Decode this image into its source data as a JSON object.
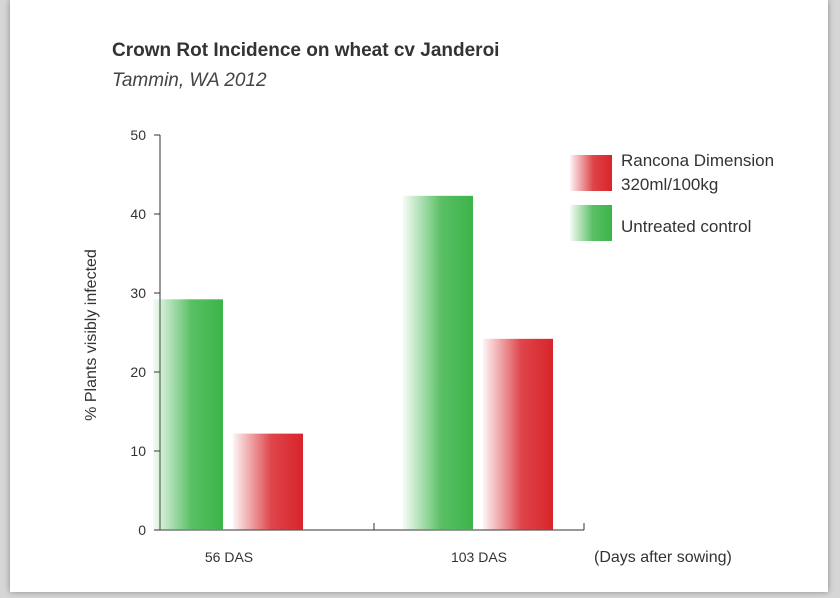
{
  "chart_data": {
    "type": "bar",
    "title": "Crown Rot Incidence on wheat cv Janderoi",
    "subtitle": "Tammin, WA 2012",
    "ylabel": "% Plants visibly infected",
    "xlabel": "(Days after sowing)",
    "categories": [
      "56 DAS",
      "103 DAS"
    ],
    "ylim": [
      0,
      50
    ],
    "yticks": [
      0,
      10,
      20,
      30,
      40,
      50
    ],
    "series": [
      {
        "name": "Untreated control",
        "values": [
          29.2,
          42.3
        ],
        "color": "#3cb449"
      },
      {
        "name": "Rancona Dimension 320ml/100kg",
        "values": [
          12.2,
          24.2
        ],
        "color": "#d8242a"
      }
    ],
    "legend": {
      "position": "top-right",
      "items": [
        {
          "lines": [
            "Rancona Dimension",
            "320ml/100kg"
          ],
          "color": "#d8242a"
        },
        {
          "lines": [
            "Untreated control"
          ],
          "color": "#3cb449"
        }
      ]
    },
    "grid": false
  }
}
